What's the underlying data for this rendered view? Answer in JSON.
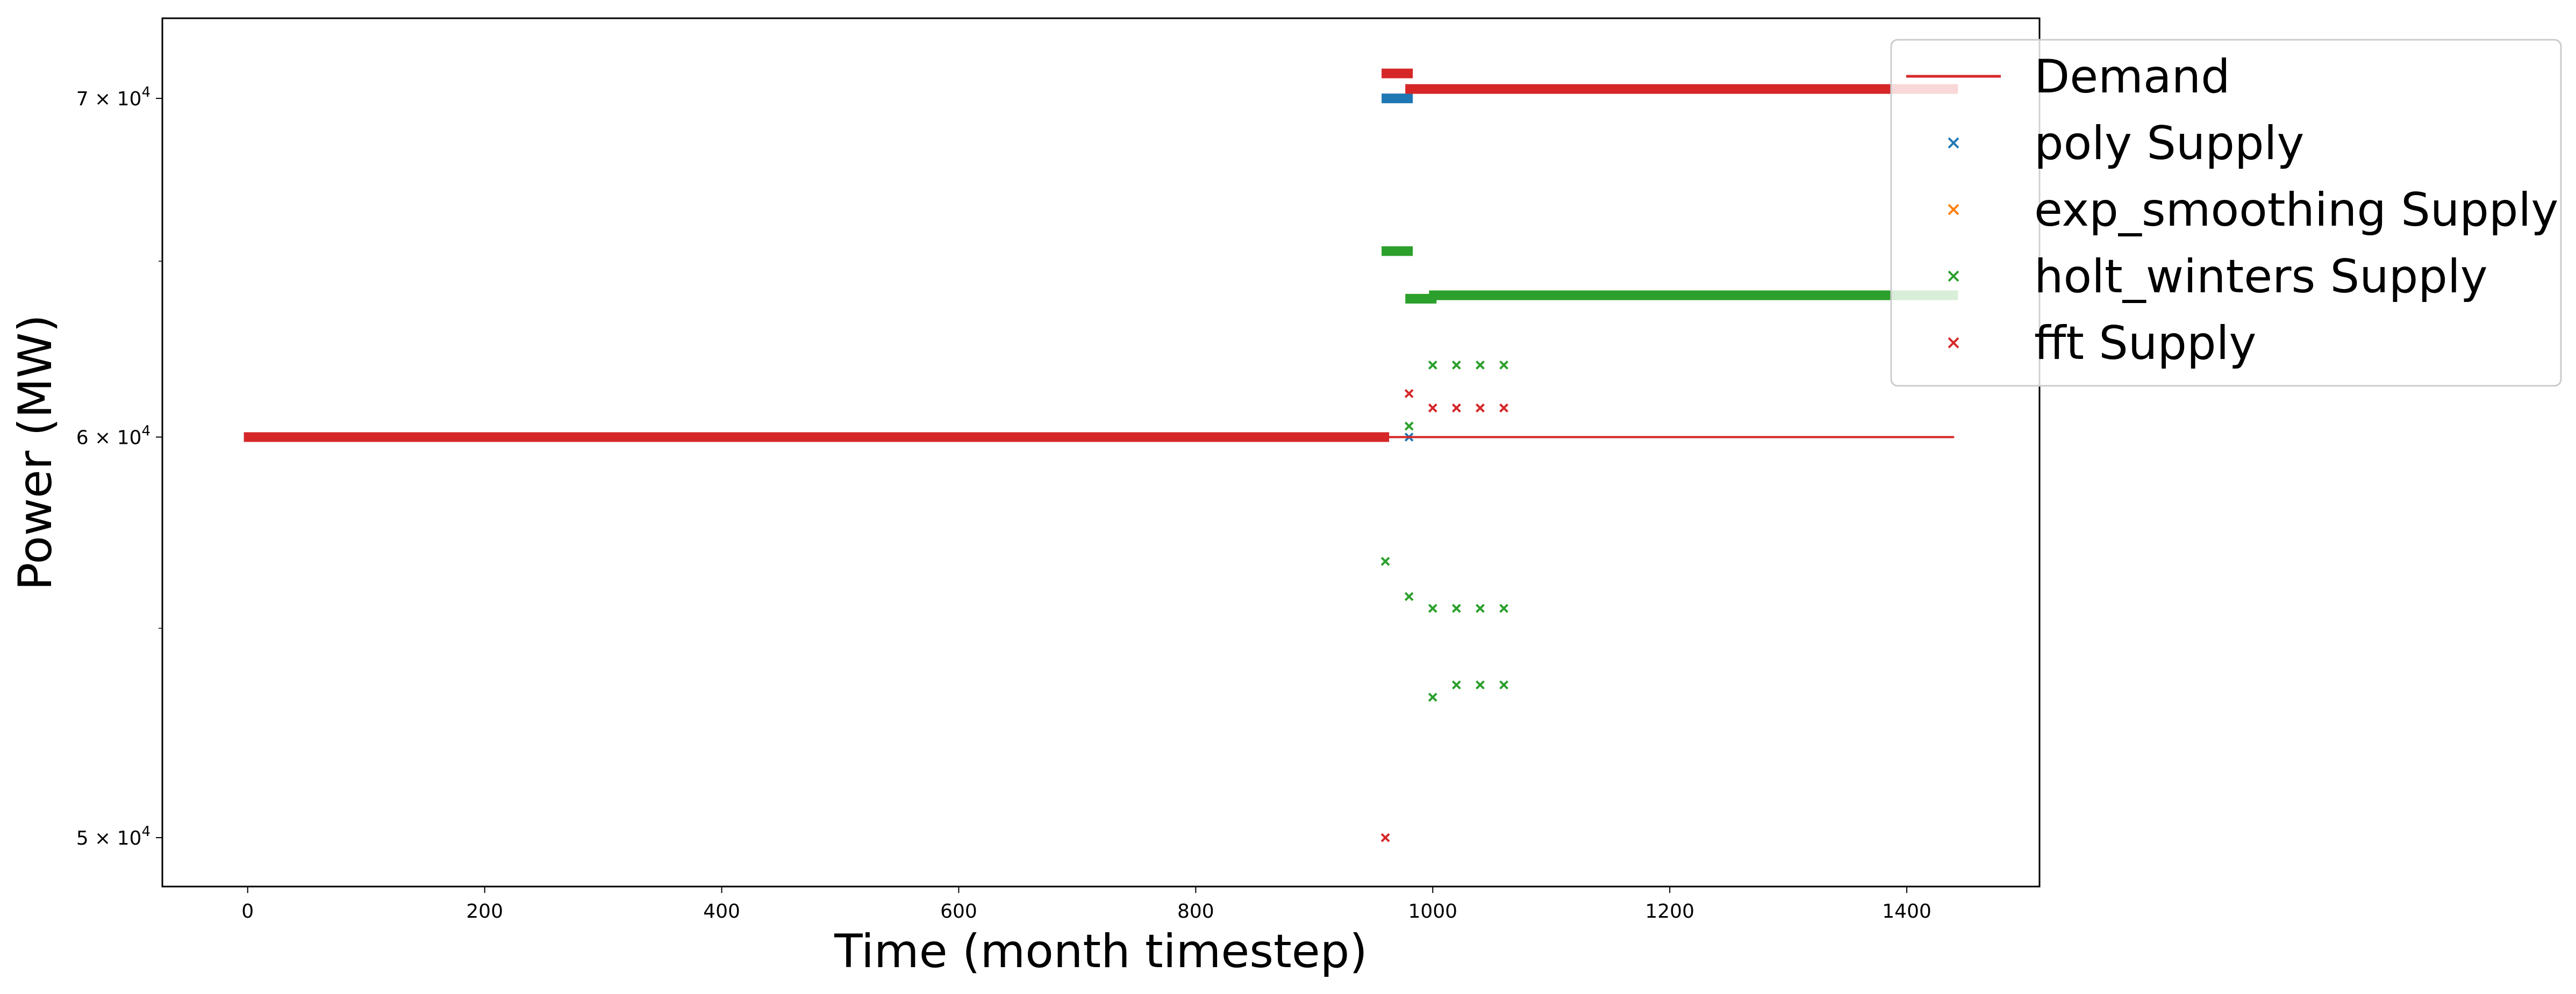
{
  "chart_data": {
    "type": "scatter",
    "xlabel": "Time (month timestep)",
    "ylabel": "Power (MW)",
    "xlim": [
      -72,
      1512
    ],
    "ylim": [
      48900,
      72600
    ],
    "yscale": "log",
    "grid": false,
    "legend_placement": "top-right",
    "xticks": [
      0,
      200,
      400,
      600,
      800,
      1000,
      1200,
      1400
    ],
    "yticks": [
      {
        "value": 50000,
        "mantissa": "5",
        "base": "10",
        "exp": "4"
      },
      {
        "value": 60000,
        "mantissa": "6",
        "base": "10",
        "exp": "4"
      },
      {
        "value": 70000,
        "mantissa": "7",
        "base": "10",
        "exp": "4"
      }
    ],
    "series": [
      {
        "name": "Demand",
        "kind": "line",
        "color": "#d62728",
        "points": [
          [
            0,
            60000
          ],
          [
            1440,
            60000
          ]
        ]
      },
      {
        "name": "poly Supply",
        "kind": "marker",
        "color": "#1f77b4",
        "runs": [
          {
            "x_start": 960,
            "x_end": 980,
            "y": 70000
          },
          {
            "x_start": 0,
            "x_end": 960,
            "y": 60000
          }
        ],
        "points": [
          [
            980,
            60000
          ]
        ]
      },
      {
        "name": "exp_smoothing Supply",
        "kind": "marker",
        "color": "#ff7f0e",
        "runs": [],
        "points": []
      },
      {
        "name": "holt_winters Supply",
        "kind": "marker",
        "color": "#2ca02c",
        "runs": [
          {
            "x_start": 960,
            "x_end": 980,
            "y": 65300
          },
          {
            "x_start": 980,
            "x_end": 1000,
            "y": 63900
          },
          {
            "x_start": 1000,
            "x_end": 1440,
            "y": 64000
          }
        ],
        "points": [
          [
            960,
            56700
          ],
          [
            980,
            55800
          ],
          [
            980,
            60300
          ],
          [
            1000,
            55500
          ],
          [
            1020,
            55500
          ],
          [
            1040,
            55500
          ],
          [
            1060,
            55500
          ],
          [
            1000,
            53300
          ],
          [
            1020,
            53600
          ],
          [
            1040,
            53600
          ],
          [
            1060,
            53600
          ],
          [
            1000,
            62000
          ],
          [
            1020,
            62000
          ],
          [
            1040,
            62000
          ],
          [
            1060,
            62000
          ]
        ]
      },
      {
        "name": "fft Supply",
        "kind": "marker",
        "color": "#d62728",
        "runs": [
          {
            "x_start": 0,
            "x_end": 960,
            "y": 60000
          },
          {
            "x_start": 960,
            "x_end": 980,
            "y": 70800
          },
          {
            "x_start": 980,
            "x_end": 1440,
            "y": 70300
          }
        ],
        "points": [
          [
            960,
            50000
          ],
          [
            980,
            61200
          ],
          [
            1000,
            60800
          ],
          [
            1020,
            60800
          ],
          [
            1040,
            60800
          ],
          [
            1060,
            60800
          ]
        ]
      }
    ]
  }
}
